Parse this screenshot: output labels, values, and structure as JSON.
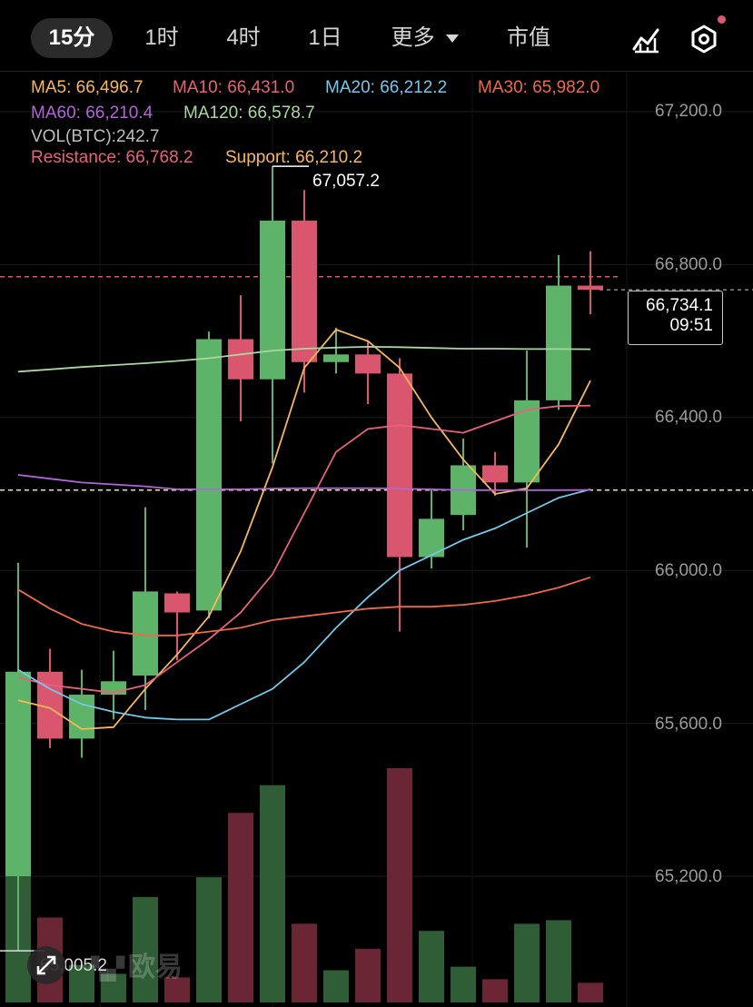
{
  "toolbar": {
    "timeframes": [
      "15分",
      "1时",
      "4时",
      "1日",
      "更多",
      "市值"
    ],
    "active": "15分",
    "icons": [
      "chart-draw-icon",
      "settings-hexagon-icon"
    ]
  },
  "indicators": {
    "ma5": "MA5: 66,496.7",
    "ma10": "MA10: 66,431.0",
    "ma20": "MA20: 66,212.2",
    "ma30": "MA30: 65,982.0",
    "ma60": "MA60: 66,210.4",
    "ma120": "MA120: 66,578.7",
    "vol": "VOL(BTC):242.7",
    "resistance": "Resistance: 66,768.2",
    "support": "Support: 66,210.2"
  },
  "colors": {
    "up": "#5db368",
    "down": "#d9566e",
    "ma5": "#f7b955",
    "ma10": "#e8617a",
    "ma20": "#74c8e8",
    "ma30": "#ef6a47",
    "ma60": "#b066d8",
    "ma120": "#a8d8a0"
  },
  "axis": {
    "labels": [
      "67,200.0",
      "66,800.0",
      "66,400.0",
      "66,000.0",
      "65,600.0",
      "65,200.0"
    ]
  },
  "current_price": {
    "price": "66,734.1",
    "countdown": "09:51"
  },
  "high_label": "67,057.2",
  "low_label": "65,005.2",
  "watermark": "欧易",
  "chart_data": {
    "type": "candlestick",
    "ylim": [
      64900,
      67400
    ],
    "y_ticks": [
      67200,
      66800,
      66400,
      66000,
      65600,
      65200
    ],
    "resistance": 66768.2,
    "support": 66210.2,
    "current": 66734.1,
    "candles": [
      {
        "o": 65200,
        "h": 66020,
        "l": 65005,
        "c": 65735
      },
      {
        "o": 65735,
        "h": 65795,
        "l": 65535,
        "c": 65560
      },
      {
        "o": 65560,
        "h": 65740,
        "l": 65510,
        "c": 65675
      },
      {
        "o": 65675,
        "h": 65790,
        "l": 65610,
        "c": 65710
      },
      {
        "o": 65725,
        "h": 66165,
        "l": 65635,
        "c": 65945
      },
      {
        "o": 65940,
        "h": 65945,
        "l": 65765,
        "c": 65890
      },
      {
        "o": 65895,
        "h": 66625,
        "l": 65875,
        "c": 66605
      },
      {
        "o": 66605,
        "h": 66720,
        "l": 66390,
        "c": 66500
      },
      {
        "o": 66500,
        "h": 67057.2,
        "l": 66280,
        "c": 66915
      },
      {
        "o": 66915,
        "h": 66995,
        "l": 66465,
        "c": 66545
      },
      {
        "o": 66545,
        "h": 66635,
        "l": 66515,
        "c": 66565
      },
      {
        "o": 66565,
        "h": 66600,
        "l": 66435,
        "c": 66515
      },
      {
        "o": 66515,
        "h": 66555,
        "l": 65840,
        "c": 66035
      },
      {
        "o": 66035,
        "h": 66210,
        "l": 66005,
        "c": 66135
      },
      {
        "o": 66145,
        "h": 66345,
        "l": 66105,
        "c": 66275
      },
      {
        "o": 66275,
        "h": 66310,
        "l": 66195,
        "c": 66230
      },
      {
        "o": 66230,
        "h": 66575,
        "l": 66060,
        "c": 66445
      },
      {
        "o": 66445,
        "h": 66825,
        "l": 66420,
        "c": 66745
      },
      {
        "o": 66745,
        "h": 66835,
        "l": 66670,
        "c": 66734.1
      }
    ],
    "volume": [
      180,
      95,
      42,
      32,
      118,
      28,
      140,
      212,
      243,
      88,
      36,
      60,
      262,
      80,
      40,
      26,
      88,
      92,
      22
    ],
    "series": [
      {
        "name": "MA5",
        "values": [
          65660,
          65640,
          65585,
          65590,
          65690,
          65780,
          65880,
          66050,
          66270,
          66530,
          66630,
          66600,
          66530,
          66400,
          66290,
          66200,
          66215,
          66330,
          66496.7
        ]
      },
      {
        "name": "MA10",
        "values": [
          65720,
          65700,
          65690,
          65680,
          65700,
          65760,
          65820,
          65890,
          65990,
          66150,
          66310,
          66370,
          66380,
          66370,
          66360,
          66390,
          66420,
          66430,
          66431.0
        ]
      },
      {
        "name": "MA20",
        "values": [
          65740,
          65690,
          65650,
          65630,
          65615,
          65610,
          65610,
          65650,
          65690,
          65760,
          65850,
          65930,
          66000,
          66040,
          66080,
          66110,
          66150,
          66190,
          66212.2
        ]
      },
      {
        "name": "MA30",
        "values": [
          65950,
          65900,
          65860,
          65840,
          65830,
          65830,
          65840,
          65850,
          65870,
          65880,
          65890,
          65900,
          65905,
          65905,
          65910,
          65920,
          65935,
          65955,
          65982.0
        ]
      },
      {
        "name": "MA60",
        "values": [
          66250,
          66240,
          66230,
          66225,
          66220,
          66212,
          66212,
          66212,
          66214,
          66215,
          66215,
          66215,
          66214,
          66212,
          66210,
          66210,
          66210,
          66210,
          66210.4
        ]
      },
      {
        "name": "MA120",
        "values": [
          66520,
          66526,
          66532,
          66537,
          66542,
          66548,
          66555,
          66565,
          66575,
          66580,
          66583,
          66585,
          66584,
          66582,
          66580,
          66580,
          66579,
          66579,
          66578.7
        ]
      }
    ]
  }
}
